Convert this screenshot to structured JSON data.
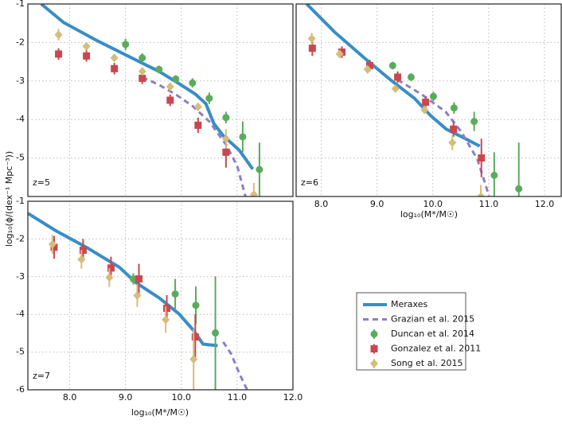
{
  "chart_data": [
    {
      "type": "line",
      "annotation": "z=5",
      "ylabel": "log₁₀(ϕ/(dex⁻¹ Mpc⁻³))",
      "xlim": [
        7.25,
        12
      ],
      "ylim": [
        -6,
        -1
      ],
      "xticks": [
        8,
        9,
        10,
        11
      ],
      "yticks": [
        -5,
        -4,
        -3,
        -2,
        -1
      ],
      "xtick_labels": false,
      "ytick_labels": true,
      "grid": true,
      "series": [
        {
          "name": "Meraxes",
          "style": "line",
          "color": "#3a8dc5",
          "x": [
            7.49,
            7.89,
            8.46,
            9.04,
            9.61,
            9.96,
            10.25,
            10.44,
            10.58,
            10.75,
            11.04,
            11.28
          ],
          "values": [
            -1,
            -1.48,
            -1.93,
            -2.35,
            -2.76,
            -3.07,
            -3.34,
            -3.59,
            -4.1,
            -4.42,
            -4.8,
            -5.29
          ]
        },
        {
          "name": "Grazian et al. 2015",
          "style": "dashed",
          "color": "#8b7fc6",
          "x": [
            9.3,
            9.6,
            9.9,
            10.2,
            10.5,
            10.8,
            11.0,
            11.15
          ],
          "values": [
            -2.9,
            -3.1,
            -3.35,
            -3.65,
            -4.05,
            -4.65,
            -5.2,
            -6
          ]
        },
        {
          "name": "Duncan et al. 2014",
          "style": "marker",
          "marker": "circle",
          "color": "#5aab5e",
          "x": [
            9.0,
            9.3,
            9.6,
            9.9,
            10.2,
            10.5,
            10.8,
            11.1,
            11.4
          ],
          "values": [
            -2.05,
            -2.4,
            -2.7,
            -2.95,
            -3.05,
            -3.45,
            -3.95,
            -4.45,
            -5.3
          ],
          "errors": [
            0.15,
            0.12,
            0.1,
            0.1,
            0.12,
            0.15,
            0.15,
            0.4,
            0.7
          ]
        },
        {
          "name": "Gonzalez et al. 2011",
          "style": "marker",
          "marker": "square",
          "color": "#c9474f",
          "x": [
            7.8,
            8.3,
            8.8,
            9.3,
            9.8,
            10.3,
            10.8
          ],
          "values": [
            -2.3,
            -2.35,
            -2.68,
            -2.93,
            -3.5,
            -4.15,
            -4.85
          ],
          "errors": [
            0.15,
            0.15,
            0.15,
            0.15,
            0.15,
            0.2,
            0.4
          ]
        },
        {
          "name": "Song et al. 2015",
          "style": "marker",
          "marker": "diamond",
          "color": "#d5bd7a",
          "x": [
            7.8,
            8.3,
            8.8,
            9.3,
            9.8,
            10.3,
            10.8,
            11.3
          ],
          "values": [
            -1.8,
            -2.1,
            -2.4,
            -2.75,
            -3.15,
            -3.67,
            -4.5,
            -5.95
          ],
          "errors": [
            0.15,
            0.1,
            0.1,
            0.1,
            0.1,
            0.1,
            0.25,
            0.3
          ]
        }
      ]
    },
    {
      "type": "line",
      "annotation": "z=6",
      "xlabel": "log₁₀(M*/M☉)",
      "xlim": [
        7.55,
        12.3
      ],
      "ylim": [
        -6,
        -1
      ],
      "xticks": [
        {
          "value": 8,
          "label": "8.0"
        },
        {
          "value": 9,
          "label": "9.0"
        },
        {
          "value": 10,
          "label": "10.0"
        },
        {
          "value": 11,
          "label": "11.0"
        },
        {
          "value": 12,
          "label": "12.0"
        }
      ],
      "yticks": [
        -5,
        -4,
        -3,
        -2
      ],
      "xtick_labels": true,
      "ytick_labels": false,
      "grid": true,
      "series": [
        {
          "name": "Meraxes",
          "style": "line",
          "color": "#3a8dc5",
          "x": [
            7.74,
            8.24,
            8.81,
            9.24,
            9.67,
            9.96,
            10.24,
            10.53,
            10.84
          ],
          "values": [
            -1,
            -1.73,
            -2.45,
            -2.97,
            -3.45,
            -3.9,
            -4.25,
            -4.46,
            -4.69
          ]
        },
        {
          "name": "Grazian et al. 2015",
          "style": "dashed",
          "color": "#8b7fc6",
          "x": [
            9.37,
            9.8,
            10.23,
            10.51,
            10.8,
            11.01
          ],
          "values": [
            -2.97,
            -3.35,
            -3.8,
            -4.32,
            -5.04,
            -6
          ]
        },
        {
          "name": "Duncan et al. 2014",
          "style": "marker",
          "marker": "circle",
          "color": "#5aab5e",
          "x": [
            9.28,
            9.61,
            10.01,
            10.38,
            10.74,
            11.1,
            11.54
          ],
          "values": [
            -2.6,
            -2.9,
            -3.4,
            -3.7,
            -4.05,
            -5.45,
            -5.8
          ],
          "errors": [
            0.1,
            0.1,
            0.12,
            0.15,
            0.25,
            0.6,
            1.2
          ]
        },
        {
          "name": "Gonzalez et al. 2011",
          "style": "marker",
          "marker": "square",
          "color": "#c9474f",
          "x": [
            7.84,
            8.37,
            8.87,
            9.37,
            9.87,
            10.37,
            10.87
          ],
          "values": [
            -2.15,
            -2.25,
            -2.6,
            -2.9,
            -3.55,
            -4.25,
            -5.0
          ],
          "errors": [
            0.2,
            0.15,
            0.15,
            0.15,
            0.15,
            0.2,
            0.5
          ]
        },
        {
          "name": "Song et al. 2015",
          "style": "marker",
          "marker": "diamond",
          "color": "#d5bd7a",
          "x": [
            7.83,
            8.33,
            8.83,
            9.33,
            9.85,
            10.35,
            10.86
          ],
          "values": [
            -1.9,
            -2.3,
            -2.7,
            -3.2,
            -3.75,
            -4.6,
            -6
          ],
          "errors": [
            0.15,
            0.1,
            0.1,
            0.1,
            0.1,
            0.2,
            0.3
          ]
        }
      ]
    },
    {
      "type": "line",
      "annotation": "z=7",
      "xlabel": "log₁₀(M*/M☉)",
      "xlim": [
        7.25,
        12
      ],
      "ylim": [
        -6,
        -1
      ],
      "xticks": [
        {
          "value": 8,
          "label": "8.0"
        },
        {
          "value": 9,
          "label": "9.0"
        },
        {
          "value": 10,
          "label": "10.0"
        },
        {
          "value": 11,
          "label": "11.0"
        },
        {
          "value": 12,
          "label": "12.0"
        }
      ],
      "yticks": [
        -6,
        -5,
        -4,
        -3,
        -2,
        -1
      ],
      "xtick_labels": true,
      "ytick_labels": true,
      "grid": true,
      "series": [
        {
          "name": "Meraxes",
          "style": "line",
          "color": "#3a8dc5",
          "x": [
            7.25,
            7.75,
            8.32,
            8.89,
            9.18,
            9.61,
            9.96,
            10.21,
            10.39,
            10.65
          ],
          "values": [
            -1.32,
            -1.78,
            -2.24,
            -2.75,
            -3.15,
            -3.57,
            -3.99,
            -4.41,
            -4.79,
            -4.83
          ]
        },
        {
          "name": "Grazian et al. 2015",
          "style": "dashed",
          "color": "#8b7fc6",
          "x": [
            10.75,
            10.89,
            11.04,
            11.18
          ],
          "values": [
            -4.73,
            -5.04,
            -5.57,
            -6
          ]
        },
        {
          "name": "Duncan et al. 2014",
          "style": "marker",
          "marker": "circle",
          "color": "#5aab5e",
          "x": [
            9.14,
            9.89,
            10.26,
            10.61
          ],
          "values": [
            -3.06,
            -3.46,
            -3.76,
            -4.49
          ],
          "errors": [
            0.15,
            0.4,
            0.5,
            1.5
          ]
        },
        {
          "name": "Gonzalez et al. 2011",
          "style": "marker",
          "marker": "square",
          "color": "#c9474f",
          "x": [
            7.72,
            8.24,
            8.74,
            9.24,
            9.74,
            10.25
          ],
          "values": [
            -2.22,
            -2.3,
            -2.77,
            -3.06,
            -3.84,
            -4.6
          ],
          "errors": [
            0.3,
            0.3,
            0.3,
            0.4,
            0.35,
            0.6
          ]
        },
        {
          "name": "Song et al. 2015",
          "style": "marker",
          "marker": "diamond",
          "color": "#d5bd7a",
          "x": [
            7.69,
            8.21,
            8.71,
            9.21,
            9.72,
            10.22
          ],
          "values": [
            -2.14,
            -2.54,
            -3.02,
            -3.5,
            -4.14,
            -5.19
          ],
          "errors": [
            0.25,
            0.25,
            0.25,
            0.3,
            0.35,
            0.8
          ]
        }
      ]
    }
  ]
}
